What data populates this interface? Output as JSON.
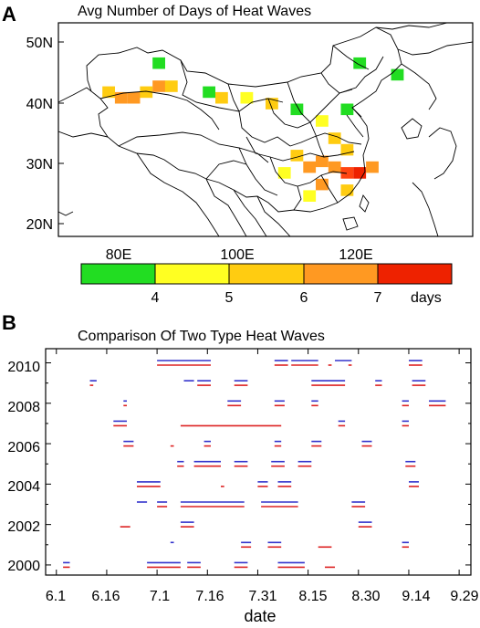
{
  "panel_a": {
    "letter": "A",
    "title": "Avg Number of Days of Heat Waves",
    "lat_ticks": [
      "50N",
      "40N",
      "30N",
      "20N"
    ],
    "lon_ticks": [
      "80E",
      "100E",
      "120E"
    ],
    "colorbar": {
      "colors": [
        "#22dd22",
        "#ffff22",
        "#ffcc11",
        "#ff9922",
        "#ff4411",
        "#ee2200"
      ],
      "tick_labels": [
        "4",
        "5",
        "6",
        "7"
      ],
      "unit": "days"
    }
  },
  "panel_b": {
    "letter": "B",
    "title": "Comparison Of Two Type Heat Waves",
    "xlabel": "date",
    "x_tick_labels": [
      "6.1",
      "6.16",
      "7.1",
      "7.16",
      "7.31",
      "8.15",
      "8.30",
      "9.14",
      "9.29"
    ],
    "y_tick_labels": [
      "2000",
      "2002",
      "2004",
      "2006",
      "2008",
      "2010"
    ],
    "series_colors": {
      "blue": "#3333cc",
      "red": "#dd2222"
    }
  },
  "chart_data": [
    {
      "type": "heatmap",
      "title": "Avg Number of Days of Heat Waves",
      "xlabel": "",
      "ylabel": "",
      "x_ticks": [
        "80E",
        "100E",
        "120E"
      ],
      "y_ticks": [
        "50N",
        "40N",
        "30N",
        "20N"
      ],
      "xlim": [
        70,
        136
      ],
      "ylim": [
        18,
        55
      ],
      "colorbar": {
        "bounds": [
          4,
          5,
          6,
          7
        ],
        "unit": "days"
      },
      "cells": [
        {
          "lon": 78,
          "lat": 43,
          "days": 5.5
        },
        {
          "lon": 80,
          "lat": 42,
          "days": 6.8
        },
        {
          "lon": 82,
          "lat": 42,
          "days": 6.2
        },
        {
          "lon": 84,
          "lat": 43,
          "days": 5.0
        },
        {
          "lon": 86,
          "lat": 44,
          "days": 6.8
        },
        {
          "lon": 88,
          "lat": 44,
          "days": 5.2
        },
        {
          "lon": 86,
          "lat": 48,
          "days": 3.5
        },
        {
          "lon": 94,
          "lat": 43,
          "days": 3.5
        },
        {
          "lon": 96,
          "lat": 42,
          "days": 5.0
        },
        {
          "lon": 100,
          "lat": 42,
          "days": 4.5
        },
        {
          "lon": 104,
          "lat": 41,
          "days": 5.5
        },
        {
          "lon": 108,
          "lat": 40,
          "days": 3.5
        },
        {
          "lon": 112,
          "lat": 38,
          "days": 4.5
        },
        {
          "lon": 116,
          "lat": 40,
          "days": 3.5
        },
        {
          "lon": 118,
          "lat": 48,
          "days": 3.5
        },
        {
          "lon": 124,
          "lat": 46,
          "days": 3.5
        },
        {
          "lon": 108,
          "lat": 32,
          "days": 5.5
        },
        {
          "lon": 110,
          "lat": 30,
          "days": 6.5
        },
        {
          "lon": 112,
          "lat": 31,
          "days": 6.2
        },
        {
          "lon": 114,
          "lat": 30,
          "days": 6.8
        },
        {
          "lon": 116,
          "lat": 29,
          "days": 7.3
        },
        {
          "lon": 118,
          "lat": 29,
          "days": 7.5
        },
        {
          "lon": 120,
          "lat": 30,
          "days": 6.8
        },
        {
          "lon": 112,
          "lat": 27,
          "days": 6.0
        },
        {
          "lon": 116,
          "lat": 26,
          "days": 5.5
        },
        {
          "lon": 110,
          "lat": 25,
          "days": 4.8
        },
        {
          "lon": 114,
          "lat": 35,
          "days": 5.0
        },
        {
          "lon": 116,
          "lat": 33,
          "days": 5.2
        },
        {
          "lon": 106,
          "lat": 29,
          "days": 4.5
        }
      ]
    },
    {
      "type": "line",
      "title": "Comparison Of Two Type Heat Waves",
      "xlabel": "date",
      "ylabel": "",
      "x_ticks": [
        "6.1",
        "6.16",
        "7.1",
        "7.16",
        "7.31",
        "8.15",
        "8.30",
        "9.14",
        "9.29"
      ],
      "y_ticks": [
        "2000",
        "2002",
        "2004",
        "2006",
        "2008",
        "2010"
      ],
      "xlim": [
        "6.1",
        "9.29"
      ],
      "ylim": [
        1999.5,
        2010.7
      ],
      "grid": false,
      "series": [
        {
          "color": "#3333cc",
          "segments": [
            {
              "year": 2010,
              "start": "7.1",
              "end": "7.17"
            },
            {
              "year": 2010,
              "start": "8.5",
              "end": "8.9"
            },
            {
              "year": 2010,
              "start": "8.10",
              "end": "8.18"
            },
            {
              "year": 2010,
              "start": "8.23",
              "end": "8.28"
            },
            {
              "year": 2010,
              "start": "9.14",
              "end": "9.18"
            },
            {
              "year": 2009,
              "start": "6.11",
              "end": "6.13"
            },
            {
              "year": 2009,
              "start": "7.9",
              "end": "7.12"
            },
            {
              "year": 2009,
              "start": "7.13",
              "end": "7.17"
            },
            {
              "year": 2009,
              "start": "7.24",
              "end": "7.28"
            },
            {
              "year": 2009,
              "start": "8.16",
              "end": "8.26"
            },
            {
              "year": 2009,
              "start": "9.4",
              "end": "9.6"
            },
            {
              "year": 2009,
              "start": "9.15",
              "end": "9.19"
            },
            {
              "year": 2008,
              "start": "6.21",
              "end": "6.22"
            },
            {
              "year": 2008,
              "start": "7.22",
              "end": "7.26"
            },
            {
              "year": 2008,
              "start": "8.5",
              "end": "8.8"
            },
            {
              "year": 2008,
              "start": "8.16",
              "end": "8.18"
            },
            {
              "year": 2008,
              "start": "9.12",
              "end": "9.14"
            },
            {
              "year": 2008,
              "start": "9.20",
              "end": "9.25"
            },
            {
              "year": 2007,
              "start": "6.18",
              "end": "6.22"
            },
            {
              "year": 2007,
              "start": "8.24",
              "end": "8.26"
            },
            {
              "year": 2007,
              "start": "9.12",
              "end": "9.14"
            },
            {
              "year": 2006,
              "start": "6.21",
              "end": "6.24"
            },
            {
              "year": 2006,
              "start": "7.15",
              "end": "7.17"
            },
            {
              "year": 2006,
              "start": "8.5",
              "end": "8.7"
            },
            {
              "year": 2006,
              "start": "8.16",
              "end": "8.19"
            },
            {
              "year": 2006,
              "start": "8.31",
              "end": "9.3"
            },
            {
              "year": 2005,
              "start": "7.7",
              "end": "7.9"
            },
            {
              "year": 2005,
              "start": "7.12",
              "end": "7.20"
            },
            {
              "year": 2005,
              "start": "7.24",
              "end": "7.28"
            },
            {
              "year": 2005,
              "start": "8.4",
              "end": "8.8"
            },
            {
              "year": 2005,
              "start": "8.12",
              "end": "8.16"
            },
            {
              "year": 2005,
              "start": "9.13",
              "end": "9.16"
            },
            {
              "year": 2004,
              "start": "6.25",
              "end": "7.2"
            },
            {
              "year": 2004,
              "start": "7.31",
              "end": "8.3"
            },
            {
              "year": 2004,
              "start": "8.6",
              "end": "8.10"
            },
            {
              "year": 2004,
              "start": "9.14",
              "end": "9.17"
            },
            {
              "year": 2003,
              "start": "6.25",
              "end": "6.28"
            },
            {
              "year": 2003,
              "start": "7.1",
              "end": "7.4"
            },
            {
              "year": 2003,
              "start": "7.8",
              "end": "7.27"
            },
            {
              "year": 2003,
              "start": "8.1",
              "end": "8.12"
            },
            {
              "year": 2003,
              "start": "8.28",
              "end": "9.1"
            },
            {
              "year": 2002,
              "start": "7.8",
              "end": "7.12"
            },
            {
              "year": 2002,
              "start": "8.30",
              "end": "9.3"
            },
            {
              "year": 2001,
              "start": "7.5",
              "end": "7.6"
            },
            {
              "year": 2001,
              "start": "7.26",
              "end": "7.29"
            },
            {
              "year": 2001,
              "start": "8.3",
              "end": "8.7"
            },
            {
              "year": 2001,
              "start": "9.12",
              "end": "9.14"
            },
            {
              "year": 2000,
              "start": "6.3",
              "end": "6.5"
            },
            {
              "year": 2000,
              "start": "6.28",
              "end": "7.8"
            },
            {
              "year": 2000,
              "start": "7.10",
              "end": "7.14"
            },
            {
              "year": 2000,
              "start": "7.24",
              "end": "7.28"
            },
            {
              "year": 2000,
              "start": "8.6",
              "end": "8.14"
            }
          ]
        },
        {
          "color": "#dd2222",
          "segments": [
            {
              "year": 2010,
              "start": "7.1",
              "end": "7.17"
            },
            {
              "year": 2010,
              "start": "8.5",
              "end": "8.9"
            },
            {
              "year": 2010,
              "start": "8.10",
              "end": "8.18"
            },
            {
              "year": 2010,
              "start": "8.21",
              "end": "8.22"
            },
            {
              "year": 2010,
              "start": "8.27",
              "end": "8.28"
            },
            {
              "year": 2010,
              "start": "9.14",
              "end": "9.18"
            },
            {
              "year": 2009,
              "start": "6.11",
              "end": "6.12"
            },
            {
              "year": 2009,
              "start": "7.13",
              "end": "7.17"
            },
            {
              "year": 2009,
              "start": "7.24",
              "end": "7.28"
            },
            {
              "year": 2009,
              "start": "8.16",
              "end": "8.26"
            },
            {
              "year": 2009,
              "start": "9.4",
              "end": "9.6"
            },
            {
              "year": 2009,
              "start": "9.15",
              "end": "9.19"
            },
            {
              "year": 2008,
              "start": "6.21",
              "end": "6.22"
            },
            {
              "year": 2008,
              "start": "7.22",
              "end": "7.26"
            },
            {
              "year": 2008,
              "start": "8.5",
              "end": "8.8"
            },
            {
              "year": 2008,
              "start": "8.16",
              "end": "8.18"
            },
            {
              "year": 2008,
              "start": "9.12",
              "end": "9.14"
            },
            {
              "year": 2008,
              "start": "9.20",
              "end": "9.25"
            },
            {
              "year": 2007,
              "start": "6.18",
              "end": "6.22"
            },
            {
              "year": 2007,
              "start": "7.8",
              "end": "8.7"
            },
            {
              "year": 2007,
              "start": "8.24",
              "end": "8.26"
            },
            {
              "year": 2007,
              "start": "9.12",
              "end": "9.14"
            },
            {
              "year": 2006,
              "start": "6.21",
              "end": "6.24"
            },
            {
              "year": 2006,
              "start": "7.5",
              "end": "7.6"
            },
            {
              "year": 2006,
              "start": "7.15",
              "end": "7.17"
            },
            {
              "year": 2006,
              "start": "8.5",
              "end": "8.7"
            },
            {
              "year": 2006,
              "start": "8.16",
              "end": "8.19"
            },
            {
              "year": 2006,
              "start": "8.31",
              "end": "9.3"
            },
            {
              "year": 2005,
              "start": "7.7",
              "end": "7.9"
            },
            {
              "year": 2005,
              "start": "7.12",
              "end": "7.20"
            },
            {
              "year": 2005,
              "start": "7.24",
              "end": "7.28"
            },
            {
              "year": 2005,
              "start": "8.4",
              "end": "8.8"
            },
            {
              "year": 2005,
              "start": "8.12",
              "end": "8.16"
            },
            {
              "year": 2005,
              "start": "9.13",
              "end": "9.16"
            },
            {
              "year": 2004,
              "start": "6.25",
              "end": "7.2"
            },
            {
              "year": 2004,
              "start": "7.20",
              "end": "7.21"
            },
            {
              "year": 2004,
              "start": "7.31",
              "end": "8.3"
            },
            {
              "year": 2004,
              "start": "8.6",
              "end": "8.10"
            },
            {
              "year": 2004,
              "start": "9.14",
              "end": "9.17"
            },
            {
              "year": 2003,
              "start": "7.1",
              "end": "7.4"
            },
            {
              "year": 2003,
              "start": "7.8",
              "end": "7.27"
            },
            {
              "year": 2003,
              "start": "8.1",
              "end": "8.12"
            },
            {
              "year": 2003,
              "start": "8.28",
              "end": "9.1"
            },
            {
              "year": 2002,
              "start": "6.20",
              "end": "6.23"
            },
            {
              "year": 2002,
              "start": "7.8",
              "end": "7.12"
            },
            {
              "year": 2002,
              "start": "8.30",
              "end": "9.3"
            },
            {
              "year": 2001,
              "start": "7.26",
              "end": "7.29"
            },
            {
              "year": 2001,
              "start": "8.3",
              "end": "8.7"
            },
            {
              "year": 2001,
              "start": "8.18",
              "end": "8.22"
            },
            {
              "year": 2001,
              "start": "9.12",
              "end": "9.14"
            },
            {
              "year": 2000,
              "start": "6.3",
              "end": "6.5"
            },
            {
              "year": 2000,
              "start": "6.28",
              "end": "7.8"
            },
            {
              "year": 2000,
              "start": "7.10",
              "end": "7.14"
            },
            {
              "year": 2000,
              "start": "7.24",
              "end": "7.28"
            },
            {
              "year": 2000,
              "start": "8.6",
              "end": "8.14"
            },
            {
              "year": 2000,
              "start": "8.20",
              "end": "8.23"
            }
          ]
        }
      ]
    }
  ]
}
